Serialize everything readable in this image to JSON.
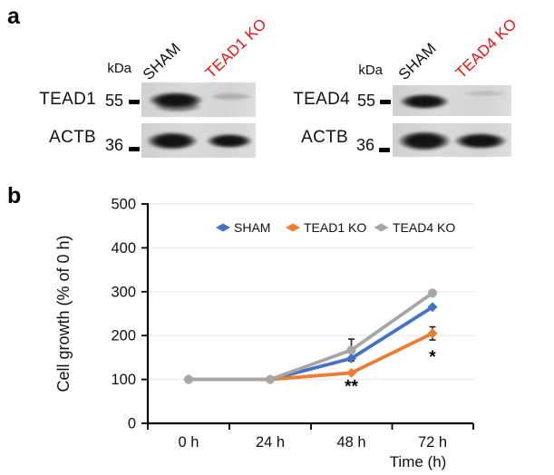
{
  "figure": {
    "panel_a_label": "a",
    "panel_b_label": "b"
  },
  "panel_a": {
    "kda_unit": "kDa",
    "blots": [
      {
        "lanes": [
          {
            "label": "SHAM",
            "color": "#111111"
          },
          {
            "label": "TEAD1 KO",
            "color": "#ee1111"
          }
        ],
        "rows": [
          {
            "protein": "TEAD1",
            "marker_kda": "55",
            "bands": {
              "SHAM": "strong",
              "TEAD1 KO": "faint"
            }
          },
          {
            "protein": "ACTB",
            "marker_kda": "36",
            "bands": {
              "SHAM": "strong",
              "TEAD1 KO": "strong"
            }
          }
        ]
      },
      {
        "lanes": [
          {
            "label": "SHAM",
            "color": "#111111"
          },
          {
            "label": "TEAD4 KO",
            "color": "#ee1111"
          }
        ],
        "rows": [
          {
            "protein": "TEAD4",
            "marker_kda": "55",
            "bands": {
              "SHAM": "strong",
              "TEAD4 KO": "absent"
            }
          },
          {
            "protein": "ACTB",
            "marker_kda": "36",
            "bands": {
              "SHAM": "strong",
              "TEAD4 KO": "strong"
            }
          }
        ]
      }
    ]
  },
  "chart_data": {
    "type": "line",
    "x": [
      "0 h",
      "24 h",
      "48 h",
      "72 h"
    ],
    "series": [
      {
        "name": "SHAM",
        "color": "#4472c4",
        "marker": "diamond",
        "values": [
          100,
          100,
          148,
          265
        ],
        "errors": [
          0,
          0,
          0,
          0
        ]
      },
      {
        "name": "TEAD1 KO",
        "color": "#ed7d31",
        "marker": "diamond",
        "values": [
          100,
          100,
          115,
          205
        ],
        "errors": [
          0,
          0,
          0,
          15
        ]
      },
      {
        "name": "TEAD4 KO",
        "color": "#a6a6a6",
        "marker": "circle",
        "values": [
          100,
          100,
          167,
          297
        ],
        "errors": [
          0,
          0,
          25,
          0
        ]
      }
    ],
    "xlabel": "Time (h)",
    "ylabel": "Cell growth (% of 0 h)",
    "ylim": [
      0,
      500
    ],
    "yticks": [
      0,
      100,
      200,
      300,
      400,
      500
    ],
    "grid": true,
    "legend_position": "top",
    "annotations": [
      {
        "text": "**",
        "category": "48 h",
        "series": "TEAD1 KO"
      },
      {
        "text": "*",
        "category": "72 h",
        "series": "TEAD1 KO"
      }
    ]
  }
}
